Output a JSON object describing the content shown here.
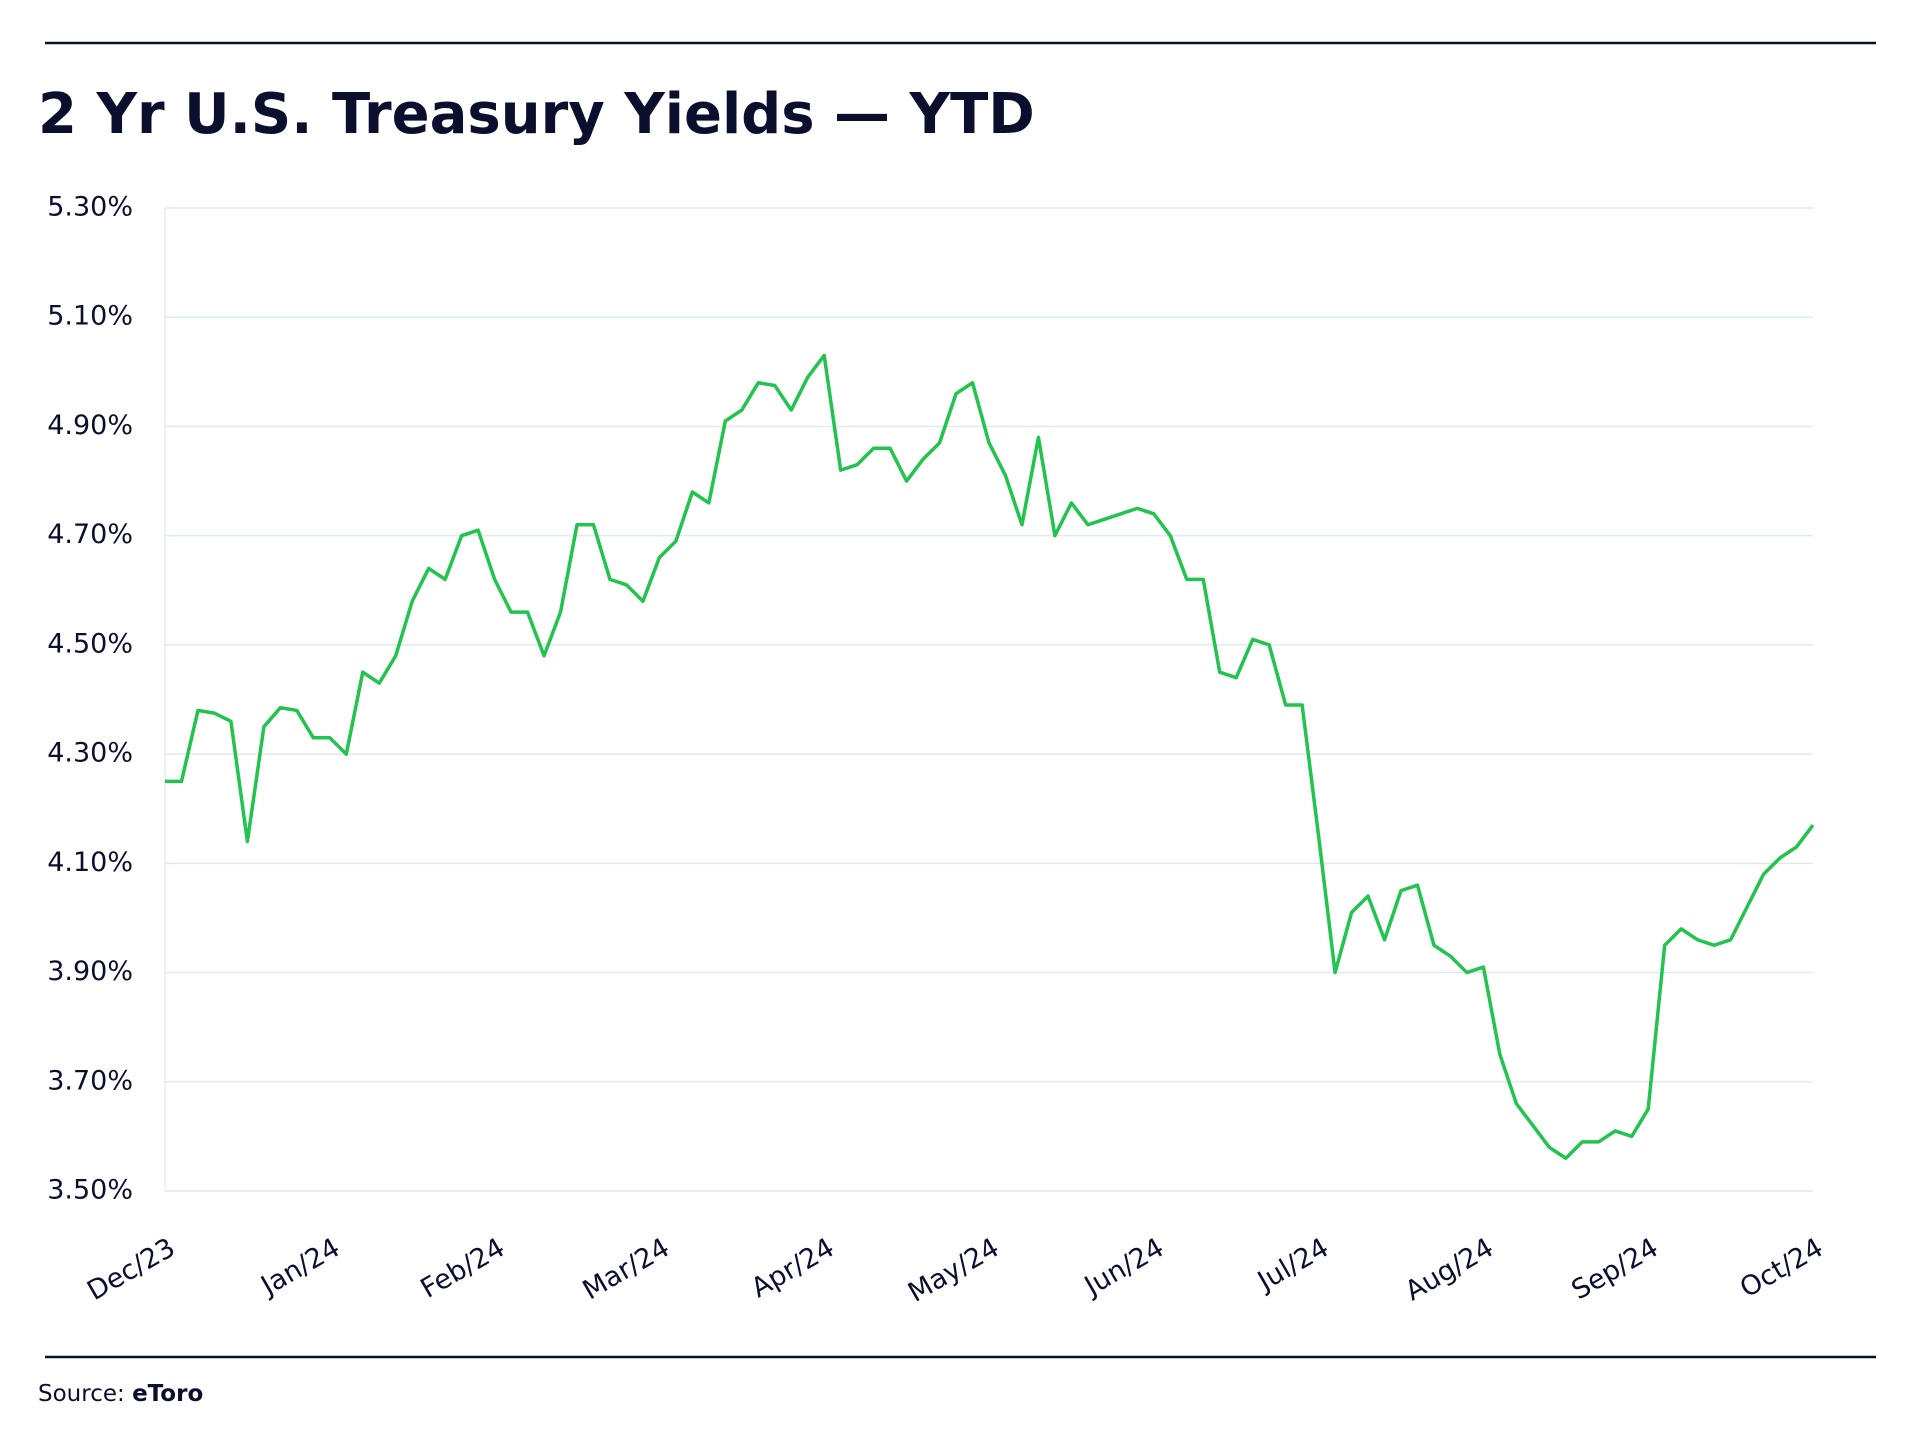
{
  "chart_data": {
    "type": "line",
    "title": "2 Yr U.S. Treasury Yields — YTD",
    "source": {
      "label": "Source:",
      "name": "eToro"
    },
    "color": "#22c44e",
    "grid": true,
    "categories": [
      "Dec/23",
      null,
      null,
      null,
      null,
      null,
      null,
      null,
      null,
      null,
      "Jan/24",
      null,
      null,
      null,
      null,
      null,
      null,
      null,
      null,
      null,
      "Feb/24",
      null,
      null,
      null,
      null,
      null,
      null,
      null,
      null,
      null,
      "Mar/24",
      null,
      null,
      null,
      null,
      null,
      null,
      null,
      null,
      null,
      "Apr/24",
      null,
      null,
      null,
      null,
      null,
      null,
      null,
      null,
      null,
      "May/24",
      null,
      null,
      null,
      null,
      null,
      null,
      null,
      null,
      null,
      "Jun/24",
      null,
      null,
      null,
      null,
      null,
      null,
      null,
      null,
      null,
      "Jul/24",
      null,
      null,
      null,
      null,
      null,
      null,
      null,
      null,
      null,
      "Aug/24",
      null,
      null,
      null,
      null,
      null,
      null,
      null,
      null,
      null,
      "Sep/24",
      null,
      null,
      null,
      null,
      null,
      null,
      null,
      null,
      null,
      "Oct/24"
    ],
    "values": [
      4.25,
      4.25,
      4.38,
      4.375,
      4.36,
      4.14,
      4.35,
      4.385,
      4.38,
      4.33,
      4.33,
      4.3,
      4.45,
      4.43,
      4.48,
      4.58,
      4.64,
      4.62,
      4.7,
      4.71,
      4.62,
      4.56,
      4.56,
      4.48,
      4.56,
      4.72,
      4.72,
      4.62,
      4.61,
      4.58,
      4.66,
      4.69,
      4.78,
      4.76,
      4.91,
      4.93,
      4.98,
      4.975,
      4.93,
      4.99,
      5.03,
      4.82,
      4.83,
      4.86,
      4.86,
      4.8,
      4.84,
      4.87,
      4.96,
      4.98,
      4.87,
      4.81,
      4.72,
      4.88,
      4.7,
      4.76,
      4.72,
      4.73,
      4.74,
      4.75,
      4.74,
      4.7,
      4.62,
      4.62,
      4.45,
      4.44,
      4.51,
      4.5,
      4.39,
      4.39,
      4.15,
      3.9,
      4.01,
      4.04,
      3.96,
      4.05,
      4.06,
      3.95,
      3.93,
      3.9,
      3.91,
      3.75,
      3.66,
      3.62,
      3.58,
      3.56,
      3.59,
      3.59,
      3.61,
      3.6,
      3.65,
      3.95,
      3.98,
      3.96,
      3.95,
      3.96,
      4.02,
      4.08,
      4.11,
      4.13,
      4.17
    ],
    "ylim": [
      3.5,
      5.3
    ],
    "yticks": [
      {
        "value": 3.5,
        "label": "3.50%"
      },
      {
        "value": 3.7,
        "label": "3.70%"
      },
      {
        "value": 3.9,
        "label": "3.90%"
      },
      {
        "value": 4.1,
        "label": "4.10%"
      },
      {
        "value": 4.3,
        "label": "4.30%"
      },
      {
        "value": 4.5,
        "label": "4.50%"
      },
      {
        "value": 4.7,
        "label": "4.70%"
      },
      {
        "value": 4.9,
        "label": "4.90%"
      },
      {
        "value": 5.1,
        "label": "5.10%"
      },
      {
        "value": 5.3,
        "label": "5.30%"
      }
    ]
  }
}
